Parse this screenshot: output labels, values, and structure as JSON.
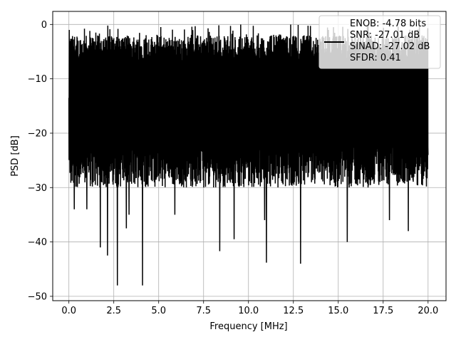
{
  "chart_data": {
    "type": "line",
    "xlabel": "Frequency [MHz]",
    "ylabel": "PSD [dB]",
    "xlim": [
      -0.9,
      21.0
    ],
    "ylim": [
      -50.8,
      2.4
    ],
    "xticks": [
      0.0,
      2.5,
      5.0,
      7.5,
      10.0,
      12.5,
      15.0,
      17.5,
      20.0
    ],
    "xtick_labels": [
      "0.0",
      "2.5",
      "5.0",
      "7.5",
      "10.0",
      "12.5",
      "15.0",
      "17.5",
      "20.0"
    ],
    "yticks": [
      0,
      -10,
      -20,
      -30,
      -40,
      -50
    ],
    "ytick_labels": [
      "0",
      "−10",
      "−20",
      "−30",
      "−40",
      "−50"
    ],
    "grid": true,
    "legend_position": "top-right",
    "series": [
      {
        "name": "ENOB: -4.78 bits\nSNR: -27.01 dB\nSINAD: -27.02 dB\nSFDR: 0.41",
        "color": "#000000",
        "description_points": {
          "x_range": [
            0.0,
            20.0
          ],
          "x_samples": [
            0.0,
            0.02,
            0.05,
            0.3,
            0.55,
            1.0,
            1.75,
            2.15,
            2.7,
            3.2,
            3.35,
            4.1,
            5.9,
            6.3,
            8.4,
            9.2,
            10.9,
            11.0,
            12.9,
            15.5,
            17.85,
            18.9,
            20.0
          ],
          "y_samples": [
            -13.5,
            -1.0,
            -23.0,
            -34.0,
            -28.0,
            -34.0,
            -41.0,
            -42.5,
            -48.0,
            -37.5,
            -35.0,
            -48.0,
            -35.0,
            -28.0,
            -41.7,
            -39.5,
            -36.0,
            -43.8,
            -44.0,
            -40.0,
            -36.0,
            -38.0,
            -24.0
          ]
        }
      }
    ],
    "peak_y": 0.0,
    "typical_top": [
      -7.0,
      -2.0
    ],
    "typical_bottom": [
      -30.0,
      -22.0
    ]
  }
}
